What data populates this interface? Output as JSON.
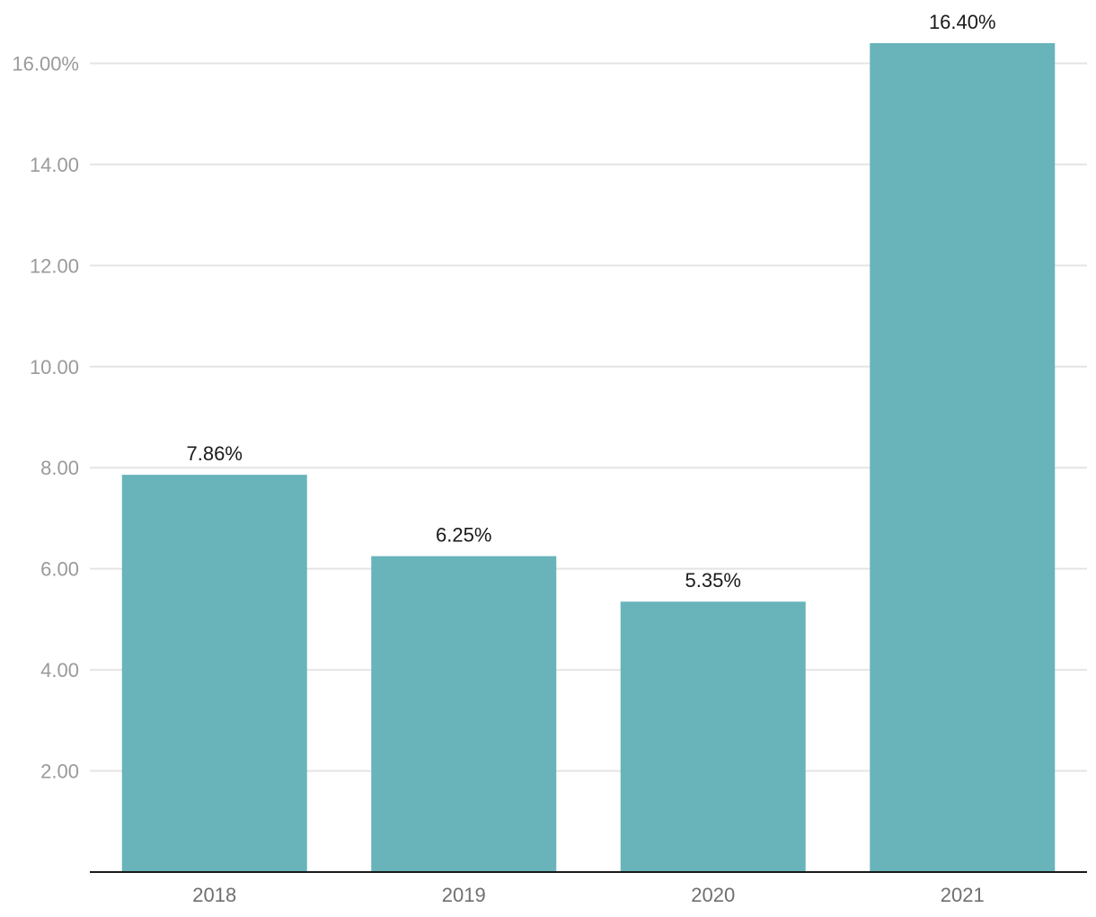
{
  "chart_data": {
    "type": "bar",
    "title": "",
    "xlabel": "",
    "ylabel": "",
    "categories": [
      "2018",
      "2019",
      "2020",
      "2021"
    ],
    "values": [
      7.86,
      6.25,
      5.35,
      16.4
    ],
    "data_labels": [
      "7.86%",
      "6.25%",
      "5.35%",
      "16.40%"
    ],
    "ylim": [
      0,
      16.4
    ],
    "y_ticks": [
      2,
      4,
      6,
      8,
      10,
      12,
      14,
      16
    ],
    "y_tick_labels": [
      "2.00",
      "4.00",
      "6.00",
      "8.00",
      "10.00",
      "12.00",
      "14.00",
      "16.00%"
    ],
    "grid": true,
    "legend": "none",
    "bar_color": "#68B4BA"
  }
}
